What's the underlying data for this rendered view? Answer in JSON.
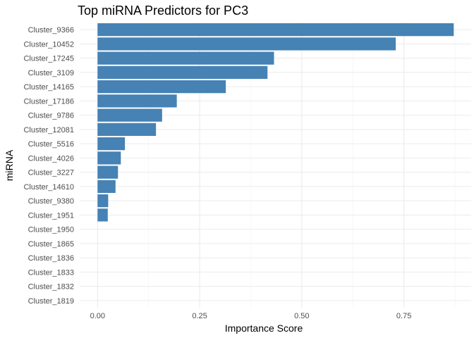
{
  "chart_data": {
    "type": "bar",
    "orientation": "horizontal",
    "title": "Top miRNA Predictors for PC3",
    "xlabel": "Importance Score",
    "ylabel": "miRNA",
    "bar_color": "#4682B4",
    "grid": true,
    "xlim": [
      -0.0437,
      0.9147
    ],
    "xticks": [
      0,
      0.25,
      0.5,
      0.75
    ],
    "xtick_labels": [
      "0.00",
      "0.25",
      "0.50",
      "0.75"
    ],
    "categories": [
      "Cluster_9366",
      "Cluster_10452",
      "Cluster_17245",
      "Cluster_3109",
      "Cluster_14165",
      "Cluster_17186",
      "Cluster_9786",
      "Cluster_12081",
      "Cluster_5516",
      "Cluster_4026",
      "Cluster_3227",
      "Cluster_14610",
      "Cluster_9380",
      "Cluster_1951",
      "Cluster_1950",
      "Cluster_1865",
      "Cluster_1836",
      "Cluster_1833",
      "Cluster_1832",
      "Cluster_1819"
    ],
    "values": [
      0.872,
      0.73,
      0.432,
      0.416,
      0.314,
      0.194,
      0.158,
      0.143,
      0.067,
      0.057,
      0.05,
      0.044,
      0.026,
      0.025,
      0,
      0,
      0,
      0,
      0,
      0
    ]
  }
}
